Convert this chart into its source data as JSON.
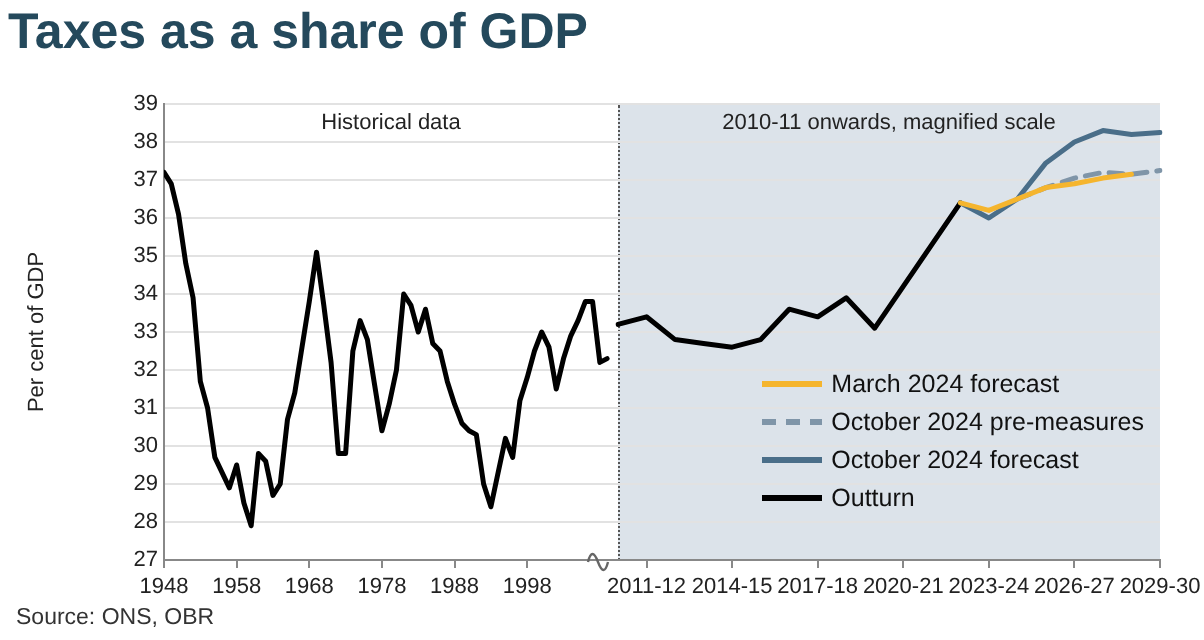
{
  "chart_data": [
    {
      "type": "line",
      "title": "Taxes as a share of GDP",
      "ylabel": "Per cent of GDP",
      "annotations": [
        "Historical data",
        "Source: ONS, OBR"
      ],
      "x": [
        1948,
        1949,
        1950,
        1951,
        1952,
        1953,
        1954,
        1955,
        1956,
        1957,
        1958,
        1959,
        1960,
        1961,
        1962,
        1963,
        1964,
        1965,
        1966,
        1967,
        1968,
        1969,
        1970,
        1971,
        1972,
        1973,
        1974,
        1975,
        1976,
        1977,
        1978,
        1979,
        1980,
        1981,
        1982,
        1983,
        1984,
        1985,
        1986,
        1987,
        1988,
        1989,
        1990,
        1991,
        1992,
        1993,
        1994,
        1995,
        1996,
        1997,
        1998,
        1999,
        2000,
        2001,
        2002,
        2003,
        2004,
        2005,
        2006,
        2007,
        2008,
        2009
      ],
      "xlim": [
        1948,
        2010.5
      ],
      "xticks": [
        1948,
        1958,
        1968,
        1978,
        1988,
        1998
      ],
      "ylim": [
        27,
        39
      ],
      "yticks": [
        27,
        28,
        29,
        30,
        31,
        32,
        33,
        34,
        35,
        36,
        37,
        38,
        39
      ],
      "grid": "y",
      "marker": "none",
      "series": [
        {
          "color": "#000000",
          "values": [
            37.2,
            36.9,
            36.1,
            34.8,
            33.9,
            31.7,
            31.0,
            29.7,
            29.3,
            28.9,
            29.5,
            28.5,
            27.9,
            29.8,
            29.6,
            28.7,
            29.0,
            30.7,
            31.4,
            32.6,
            33.8,
            35.1,
            33.7,
            32.2,
            29.8,
            29.8,
            32.5,
            33.3,
            32.8,
            31.6,
            30.4,
            31.1,
            32.0,
            34.0,
            33.7,
            33.0,
            33.6,
            32.7,
            32.5,
            31.7,
            31.1,
            30.6,
            30.4,
            30.3,
            29.0,
            28.4,
            29.3,
            30.2,
            29.7,
            31.2,
            31.8,
            32.5,
            33.0,
            32.6,
            31.5,
            32.3,
            32.9,
            33.3,
            33.8,
            33.8,
            32.2,
            32.3
          ]
        }
      ]
    },
    {
      "type": "line",
      "annotations": [
        "2010-11 onwards, magnified scale"
      ],
      "categories": [
        null,
        "2011-12",
        null,
        null,
        "2014-15",
        null,
        null,
        "2017-18",
        null,
        null,
        "2020-21",
        null,
        null,
        "2023-24",
        null,
        null,
        "2026-27",
        null,
        null,
        "2029-30"
      ],
      "ylim": [
        27,
        39
      ],
      "yticks": [
        27,
        28,
        29,
        30,
        31,
        32,
        33,
        34,
        35,
        36,
        37,
        38,
        39
      ],
      "tick_labels": "x",
      "grid": "y",
      "marker": "none",
      "legend": "bottom right",
      "series": [
        {
          "name": "March 2024 forecast",
          "color": "#f5b52e",
          "values": [
            null,
            null,
            null,
            null,
            null,
            null,
            null,
            null,
            null,
            null,
            null,
            null,
            36.4,
            36.2,
            36.5,
            36.8,
            36.9,
            37.05,
            37.15,
            null
          ]
        },
        {
          "name": "October 2024 pre-measures",
          "color": "#7f95a8",
          "line_style": "dashed",
          "values": [
            null,
            null,
            null,
            null,
            null,
            null,
            null,
            null,
            null,
            null,
            null,
            null,
            null,
            null,
            36.5,
            36.8,
            37.05,
            37.2,
            37.15,
            37.25
          ]
        },
        {
          "name": "October 2024 forecast",
          "color": "#4a6e89",
          "values": [
            null,
            null,
            null,
            null,
            null,
            null,
            null,
            null,
            null,
            null,
            null,
            null,
            36.4,
            36.0,
            36.5,
            37.45,
            38.0,
            38.3,
            38.2,
            38.25
          ]
        },
        {
          "name": "Outturn",
          "color": "#000000",
          "values": [
            33.2,
            33.4,
            32.8,
            32.7,
            32.6,
            32.8,
            33.6,
            33.4,
            33.9,
            33.1,
            34.2,
            35.3,
            36.4,
            null,
            null,
            null,
            null,
            null,
            null,
            null
          ]
        }
      ]
    }
  ]
}
